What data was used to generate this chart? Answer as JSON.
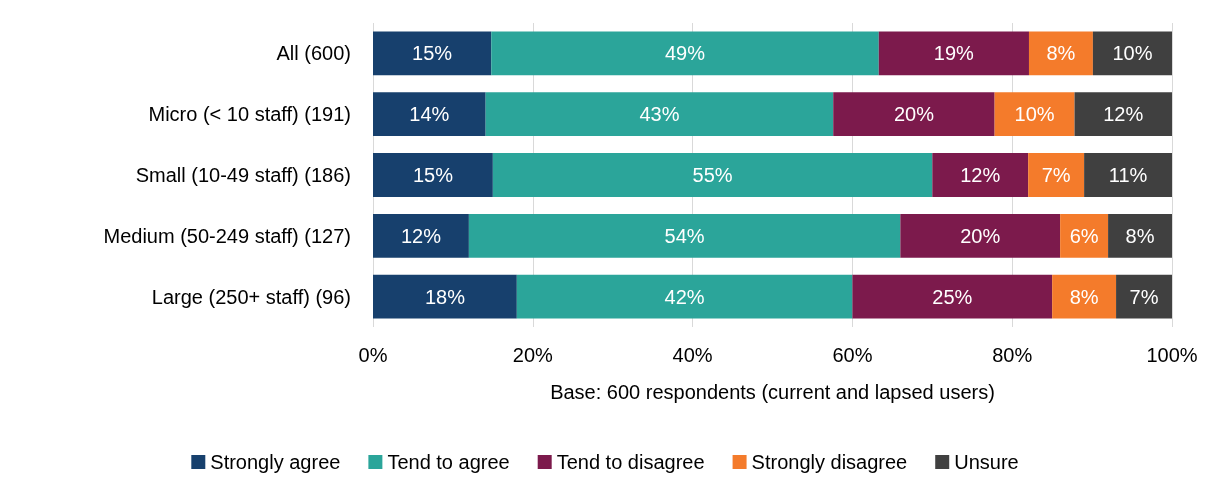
{
  "chart_data": {
    "type": "bar",
    "orientation": "horizontal",
    "stacked": true,
    "xlabel": "Base: 600 respondents (current and lapsed users)",
    "categories": [
      "All (600)",
      "Micro (< 10 staff) (191)",
      "Small (10-49 staff) (186)",
      "Medium (50-249 staff) (127)",
      "Large (250+ staff) (96)"
    ],
    "series": [
      {
        "name": "Strongly agree",
        "color": "#17406d",
        "values": [
          14.8,
          14.1,
          15,
          12,
          18
        ],
        "value_labels": [
          "15%",
          "14%",
          "15%",
          "12%",
          "18%"
        ]
      },
      {
        "name": "Tend to agree",
        "color": "#2ba59a",
        "values": [
          48.5,
          43.5,
          55,
          54,
          42
        ],
        "value_labels": [
          "49%",
          "43%",
          "55%",
          "54%",
          "42%"
        ]
      },
      {
        "name": "Tend to disagree",
        "color": "#7c1a4c",
        "values": [
          18.8,
          20.2,
          12,
          20,
          25
        ],
        "value_labels": [
          "19%",
          "20%",
          "12%",
          "20%",
          "25%"
        ]
      },
      {
        "name": "Strongly disagree",
        "color": "#f47b2b",
        "values": [
          8,
          10,
          7,
          6,
          8
        ],
        "value_labels": [
          "8%",
          "10%",
          "7%",
          "6%",
          "8%"
        ]
      },
      {
        "name": "Unsure",
        "color": "#404040",
        "values": [
          9.9,
          12.2,
          11,
          8,
          7
        ],
        "value_labels": [
          "10%",
          "12%",
          "11%",
          "8%",
          "7%"
        ]
      }
    ],
    "xlim": [
      0,
      100
    ],
    "xticks": [
      {
        "value": 0,
        "label": "0%"
      },
      {
        "value": 20,
        "label": "20%"
      },
      {
        "value": 40,
        "label": "40%"
      },
      {
        "value": 60,
        "label": "60%"
      },
      {
        "value": 80,
        "label": "80%"
      },
      {
        "value": 100,
        "label": "100%"
      }
    ],
    "grid": "x",
    "legend": "bottom"
  }
}
